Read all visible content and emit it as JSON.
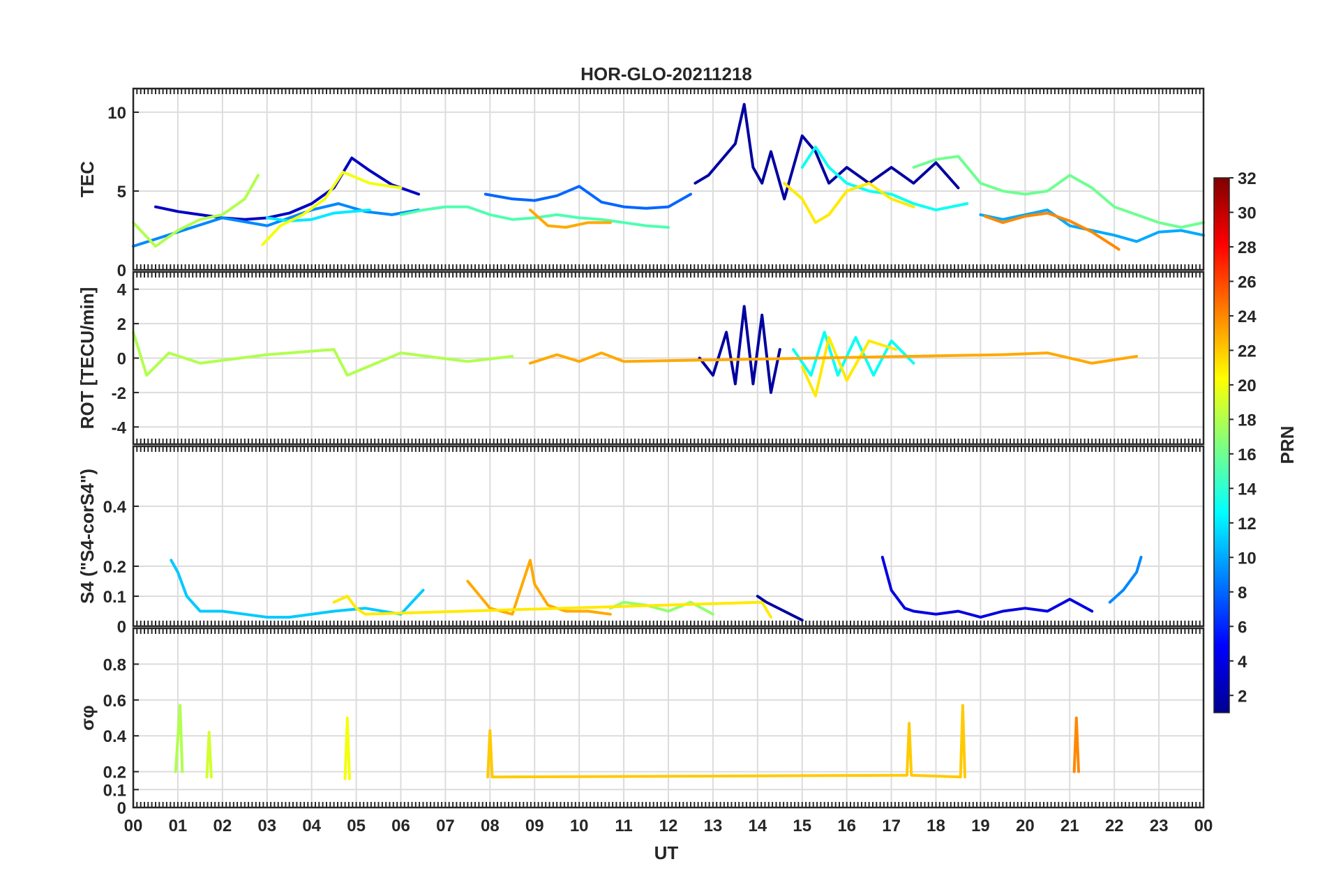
{
  "chart_data": {
    "type": "line",
    "title": "HOR-GLO-20211218",
    "xlabel": "UT",
    "x_tick_labels": [
      "00",
      "01",
      "02",
      "03",
      "04",
      "05",
      "06",
      "07",
      "08",
      "09",
      "10",
      "11",
      "12",
      "13",
      "14",
      "15",
      "16",
      "17",
      "18",
      "19",
      "20",
      "21",
      "22",
      "23",
      "00"
    ],
    "xlim": [
      0,
      24
    ],
    "grid": true,
    "colorbar": {
      "label": "PRN",
      "colormap": "jet",
      "range": [
        1,
        32
      ],
      "tick_labels": [
        "2",
        "4",
        "6",
        "8",
        "10",
        "12",
        "14",
        "16",
        "18",
        "20",
        "22",
        "24",
        "26",
        "28",
        "30",
        "32"
      ]
    },
    "panels": [
      {
        "id": "tec",
        "ylabel": "TEC",
        "ylim": [
          0,
          11.5
        ],
        "y_ticks": [
          0,
          5,
          10
        ],
        "y_tick_labels": [
          "0",
          "5",
          "10"
        ],
        "series": [
          {
            "prn": 3,
            "x": [
              0.5,
              1,
              1.5,
              2,
              2.5,
              3,
              3.5,
              4,
              4.5,
              4.9,
              5.3,
              5.8,
              6.4
            ],
            "y": [
              4,
              3.7,
              3.5,
              3.3,
              3.2,
              3.3,
              3.6,
              4.2,
              5.2,
              7.1,
              6.3,
              5.4,
              4.8
            ]
          },
          {
            "prn": 2,
            "x": [
              12.6,
              12.9,
              13.2,
              13.5,
              13.7,
              13.9,
              14.1,
              14.3,
              14.6,
              15,
              15.3,
              15.6,
              16,
              16.5,
              17,
              17.5,
              18,
              18.5
            ],
            "y": [
              5.5,
              6,
              7,
              8,
              10.5,
              6.5,
              5.5,
              7.5,
              4.5,
              8.5,
              7.5,
              5.5,
              6.5,
              5.5,
              6.5,
              5.5,
              6.8,
              5.2
            ]
          },
          {
            "prn": 8,
            "x": [
              7.9,
              8.5,
              9,
              9.5,
              10,
              10.5,
              11,
              11.5,
              12,
              12.5
            ],
            "y": [
              4.8,
              4.5,
              4.4,
              4.7,
              5.3,
              4.3,
              4,
              3.9,
              4,
              4.8
            ]
          },
          {
            "prn": 9,
            "x": [
              0,
              1,
              2,
              3,
              4,
              4.6,
              5.2,
              5.8,
              6.4
            ],
            "y": [
              1.5,
              2.4,
              3.3,
              2.8,
              3.8,
              4.2,
              3.7,
              3.5,
              3.8
            ]
          },
          {
            "prn": 10,
            "x": [
              19,
              19.5,
              20,
              20.5,
              21,
              21.5,
              22,
              22.5,
              23,
              23.5,
              24
            ],
            "y": [
              3.5,
              3.2,
              3.5,
              3.8,
              2.8,
              2.5,
              2.2,
              1.8,
              2.4,
              2.5,
              2.2
            ]
          },
          {
            "prn": 12,
            "x": [
              3,
              3.5,
              4,
              4.5,
              5.3
            ],
            "y": [
              3.3,
              3.1,
              3.2,
              3.6,
              3.8
            ]
          },
          {
            "prn": 13,
            "x": [
              15,
              15.3,
              15.6,
              16,
              16.5,
              17,
              17.5,
              18,
              18.7
            ],
            "y": [
              6.5,
              7.8,
              6.5,
              5.5,
              5,
              4.8,
              4.2,
              3.8,
              4.2
            ]
          },
          {
            "prn": 15,
            "x": [
              6,
              6.5,
              7,
              7.5,
              8,
              8.5,
              9,
              9.5,
              10,
              10.5,
              11,
              11.5,
              12
            ],
            "y": [
              3.5,
              3.8,
              4,
              4,
              3.5,
              3.2,
              3.3,
              3.5,
              3.3,
              3.2,
              3,
              2.8,
              2.7
            ]
          },
          {
            "prn": 16,
            "x": [
              17.5,
              18,
              18.5,
              19,
              19.5,
              20,
              20.5,
              21,
              21.5,
              22,
              22.5,
              23,
              23.5,
              24
            ],
            "y": [
              6.5,
              7,
              7.2,
              5.5,
              5,
              4.8,
              5,
              6,
              5.2,
              4,
              3.5,
              3,
              2.7,
              3
            ]
          },
          {
            "prn": 18,
            "x": [
              0,
              0.5,
              1,
              1.5,
              2,
              2.5,
              2.8
            ],
            "y": [
              3,
              1.5,
              2.5,
              3.2,
              3.5,
              4.5,
              6
            ]
          },
          {
            "prn": 20,
            "x": [
              2.9,
              3.3,
              3.8,
              4.3,
              4.7,
              5.3,
              6
            ],
            "y": [
              1.6,
              2.8,
              3.5,
              4.5,
              6.2,
              5.5,
              5.2
            ]
          },
          {
            "prn": 21,
            "x": [
              14.6,
              15,
              15.3,
              15.6,
              16,
              16.5,
              17,
              17.5
            ],
            "y": [
              5.5,
              4.5,
              3,
              3.5,
              5,
              5.5,
              4.5,
              4
            ]
          },
          {
            "prn": 23,
            "x": [
              8.9,
              9.3,
              9.7,
              10.2,
              10.7
            ],
            "y": [
              3.8,
              2.8,
              2.7,
              3,
              3
            ]
          },
          {
            "prn": 24,
            "x": [
              19.1,
              19.5,
              20,
              20.5,
              21,
              21.5,
              22.1
            ],
            "y": [
              3.4,
              3,
              3.4,
              3.6,
              3.1,
              2.4,
              1.3
            ]
          }
        ]
      },
      {
        "id": "rot",
        "ylabel": "ROT [TECU/min]",
        "ylim": [
          -5,
          5
        ],
        "y_ticks": [
          -4,
          -2,
          0,
          2,
          4
        ],
        "y_tick_labels": [
          "-4",
          "-2",
          "0",
          "2",
          "4"
        ],
        "series": [
          {
            "prn": 2,
            "x": [
              12.7,
              13,
              13.3,
              13.5,
              13.7,
              13.9,
              14.1,
              14.3,
              14.5
            ],
            "y": [
              0,
              -1,
              1.5,
              -1.5,
              3,
              -1.5,
              2.5,
              -2,
              0.5
            ]
          },
          {
            "prn": 13,
            "x": [
              14.8,
              15.2,
              15.5,
              15.8,
              16.2,
              16.6,
              17,
              17.5
            ],
            "y": [
              0.5,
              -1,
              1.5,
              -1,
              1.2,
              -1,
              1,
              -0.3
            ]
          },
          {
            "prn": 21,
            "x": [
              15,
              15.3,
              15.6,
              16,
              16.5,
              17.1
            ],
            "y": [
              -0.5,
              -2.2,
              1.2,
              -1.3,
              1,
              0.5
            ]
          },
          {
            "prn": 18,
            "x": [
              0,
              0.3,
              0.8,
              1.5,
              3,
              4.5,
              4.8,
              6,
              7.5,
              8.5
            ],
            "y": [
              1.5,
              -1,
              0.3,
              -0.3,
              0.2,
              0.5,
              -1,
              0.3,
              -0.2,
              0.1
            ]
          },
          {
            "prn": 23,
            "x": [
              8.9,
              9.5,
              10,
              10.5,
              11,
              19.5,
              20.5,
              21.5,
              22.5
            ],
            "y": [
              -0.3,
              0.2,
              -0.2,
              0.3,
              -0.2,
              0.2,
              0.3,
              -0.3,
              0.1
            ]
          }
        ]
      },
      {
        "id": "s4",
        "ylabel": "S4 (\"S4-corS4\")",
        "ylim": [
          0,
          0.6
        ],
        "y_ticks": [
          0,
          0.1,
          0.2,
          0.4
        ],
        "y_tick_labels": [
          "0",
          "0.1",
          "0.2",
          "0.4"
        ],
        "series": [
          {
            "prn": 11,
            "x": [
              0.85,
              1,
              1.2,
              1.5,
              2,
              2.5,
              3,
              3.5,
              4.5,
              5.2,
              6,
              6.5
            ],
            "y": [
              0.22,
              0.18,
              0.1,
              0.05,
              0.05,
              0.04,
              0.03,
              0.03,
              0.05,
              0.06,
              0.04,
              0.12
            ]
          },
          {
            "prn": 4,
            "x": [
              16.8,
              17,
              17.3,
              17.5,
              18,
              18.5,
              19,
              19.5,
              20,
              20.5,
              21,
              21.5
            ],
            "y": [
              0.23,
              0.12,
              0.06,
              0.05,
              0.04,
              0.05,
              0.03,
              0.05,
              0.06,
              0.05,
              0.09,
              0.05
            ]
          },
          {
            "prn": 23,
            "x": [
              7.5,
              8,
              8.5,
              8.9,
              9,
              9.3,
              9.7,
              10.2,
              10.7
            ],
            "y": [
              0.15,
              0.06,
              0.04,
              0.22,
              0.14,
              0.07,
              0.05,
              0.05,
              0.04
            ]
          },
          {
            "prn": 9,
            "x": [
              21.9,
              22.2,
              22.5,
              22.6
            ],
            "y": [
              0.08,
              0.12,
              0.18,
              0.23
            ]
          },
          {
            "prn": 17,
            "x": [
              10.7,
              11,
              11.5,
              12,
              12.5,
              13
            ],
            "y": [
              0.06,
              0.08,
              0.07,
              0.05,
              0.08,
              0.04
            ]
          },
          {
            "prn": 21,
            "x": [
              4.5,
              4.8,
              5,
              5.2,
              14.1,
              14.3
            ],
            "y": [
              0.08,
              0.1,
              0.06,
              0.04,
              0.08,
              0.03
            ]
          },
          {
            "prn": 2,
            "x": [
              14,
              14.2,
              14.6,
              15
            ],
            "y": [
              0.1,
              0.08,
              0.05,
              0.02
            ]
          }
        ]
      },
      {
        "id": "sigma",
        "ylabel": "σφ",
        "ylim": [
          0,
          1
        ],
        "y_ticks": [
          0,
          0.1,
          0.2,
          0.4,
          0.6,
          0.8
        ],
        "y_tick_labels": [
          "0",
          "0.1",
          "0.2",
          "0.4",
          "0.6",
          "0.8"
        ],
        "series": [
          {
            "prn": 18,
            "x": [
              0.95,
              1.05,
              1.1
            ],
            "y": [
              0.2,
              0.57,
              0.2
            ]
          },
          {
            "prn": 19,
            "x": [
              1.65,
              1.7,
              1.75
            ],
            "y": [
              0.17,
              0.42,
              0.17
            ]
          },
          {
            "prn": 20,
            "x": [
              4.75,
              4.8,
              4.85
            ],
            "y": [
              0.16,
              0.5,
              0.16
            ]
          },
          {
            "prn": 22,
            "x": [
              7.95,
              8,
              8.05,
              17.35,
              17.4,
              17.45,
              18.55,
              18.6,
              18.65
            ],
            "y": [
              0.17,
              0.43,
              0.17,
              0.18,
              0.47,
              0.18,
              0.17,
              0.57,
              0.17
            ]
          },
          {
            "prn": 24,
            "x": [
              21.1,
              21.15,
              21.2
            ],
            "y": [
              0.2,
              0.5,
              0.2
            ]
          }
        ]
      }
    ]
  }
}
